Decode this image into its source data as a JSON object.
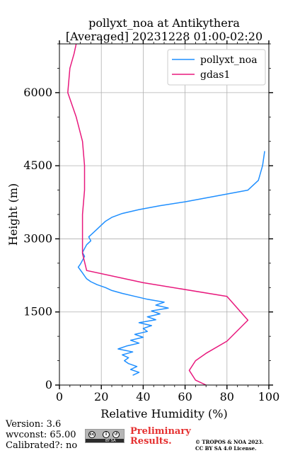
{
  "chart_data": {
    "type": "line",
    "title": "pollyxt_noa at Antikythera",
    "subtitle": "[Averaged] 20231228 01:00-02:20",
    "xlabel": "Relative Humidity (%)",
    "ylabel": "Height (m)",
    "xlim": [
      0,
      100
    ],
    "ylim": [
      0,
      7000
    ],
    "xticks": [
      "0",
      "20",
      "40",
      "60",
      "80",
      "100"
    ],
    "yticks": [
      "0",
      "1500",
      "3000",
      "4500",
      "6000"
    ],
    "grid": true,
    "legend_position": "top-right",
    "series": [
      {
        "name": "pollyxt_noa",
        "color": "#1f8fff",
        "points": [
          [
            35,
            200
          ],
          [
            38,
            260
          ],
          [
            34,
            320
          ],
          [
            37,
            380
          ],
          [
            33,
            440
          ],
          [
            31,
            500
          ],
          [
            33,
            560
          ],
          [
            30,
            620
          ],
          [
            35,
            680
          ],
          [
            28,
            740
          ],
          [
            32,
            800
          ],
          [
            38,
            860
          ],
          [
            34,
            920
          ],
          [
            40,
            980
          ],
          [
            36,
            1040
          ],
          [
            42,
            1100
          ],
          [
            40,
            1160
          ],
          [
            44,
            1220
          ],
          [
            38,
            1280
          ],
          [
            46,
            1340
          ],
          [
            42,
            1400
          ],
          [
            48,
            1460
          ],
          [
            44,
            1520
          ],
          [
            52,
            1580
          ],
          [
            46,
            1640
          ],
          [
            50,
            1700
          ],
          [
            42,
            1760
          ],
          [
            36,
            1820
          ],
          [
            30,
            1880
          ],
          [
            25,
            1940
          ],
          [
            22,
            2000
          ],
          [
            18,
            2060
          ],
          [
            15,
            2120
          ],
          [
            13,
            2180
          ],
          [
            12,
            2240
          ],
          [
            11,
            2300
          ],
          [
            10,
            2360
          ],
          [
            9,
            2420
          ],
          [
            10,
            2480
          ],
          [
            11,
            2560
          ],
          [
            12,
            2640
          ],
          [
            11,
            2720
          ],
          [
            12,
            2800
          ],
          [
            13,
            2880
          ],
          [
            15,
            2960
          ],
          [
            14,
            3040
          ],
          [
            16,
            3120
          ],
          [
            18,
            3200
          ],
          [
            20,
            3280
          ],
          [
            22,
            3360
          ],
          [
            25,
            3440
          ],
          [
            30,
            3520
          ],
          [
            38,
            3600
          ],
          [
            48,
            3680
          ],
          [
            60,
            3760
          ],
          [
            70,
            3840
          ],
          [
            80,
            3920
          ],
          [
            90,
            4000
          ],
          [
            95,
            4200
          ],
          [
            97,
            4500
          ],
          [
            98,
            4800
          ]
        ]
      },
      {
        "name": "gdas1",
        "color": "#e8197d",
        "points": [
          [
            70,
            0
          ],
          [
            65,
            100
          ],
          [
            62,
            300
          ],
          [
            65,
            500
          ],
          [
            70,
            650
          ],
          [
            80,
            900
          ],
          [
            90,
            1330
          ],
          [
            80,
            1820
          ],
          [
            40,
            2100
          ],
          [
            13,
            2350
          ],
          [
            11,
            2700
          ],
          [
            11,
            3000
          ],
          [
            11,
            3500
          ],
          [
            12,
            4000
          ],
          [
            12,
            4500
          ],
          [
            11,
            5000
          ],
          [
            8,
            5500
          ],
          [
            4,
            6000
          ],
          [
            5,
            6500
          ],
          [
            7,
            6800
          ],
          [
            8,
            7000
          ]
        ]
      }
    ]
  },
  "footer": {
    "version": "Version: 3.6",
    "wvconst": "wvconst:  65.00",
    "calibrated": "Calibrated?: no",
    "license_badge": "cc-by-sa-icon",
    "preliminary_line1": "Preliminary",
    "preliminary_line2": "Results.",
    "copyright_line1": "© TROPOS & NOA 2023.",
    "copyright_line2": "CC BY SA 4.0 License."
  }
}
